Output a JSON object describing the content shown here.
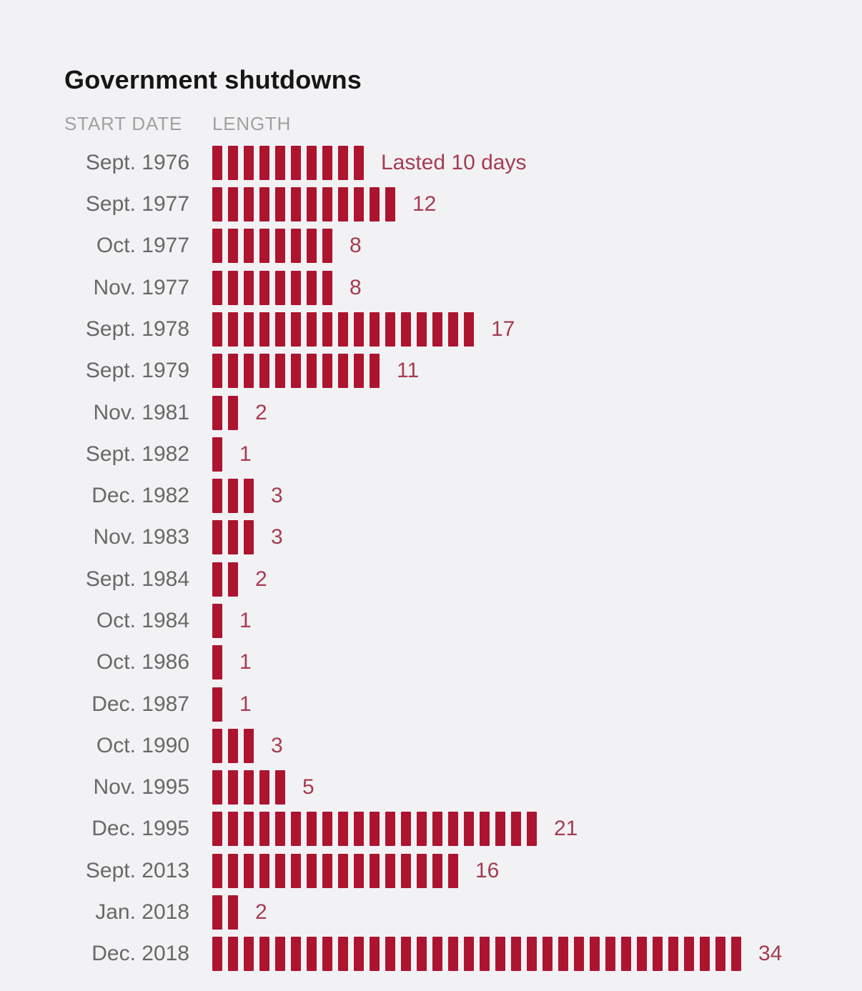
{
  "page": {
    "background_color": "#f2f2f4"
  },
  "chart_data": {
    "type": "bar",
    "orientation": "horizontal",
    "title": "Government shutdowns",
    "columns": [
      "START DATE",
      "LENGTH"
    ],
    "unit": "days",
    "bar_color": "#ad1430",
    "value_label_color": "#a63b52",
    "date_label_color": "#686868",
    "header_color": "#a1a1a1",
    "categories": [
      "Sept. 1976",
      "Sept. 1977",
      "Oct. 1977",
      "Nov. 1977",
      "Sept. 1978",
      "Sept. 1979",
      "Nov. 1981",
      "Sept. 1982",
      "Dec. 1982",
      "Nov. 1983",
      "Sept. 1984",
      "Oct. 1984",
      "Oct. 1986",
      "Dec. 1987",
      "Oct. 1990",
      "Nov. 1995",
      "Dec. 1995",
      "Sept. 2013",
      "Jan. 2018",
      "Dec. 2018"
    ],
    "values": [
      10,
      12,
      8,
      8,
      17,
      11,
      2,
      1,
      3,
      3,
      2,
      1,
      1,
      1,
      3,
      5,
      21,
      16,
      2,
      34
    ],
    "rows": [
      {
        "date": "Sept. 1976",
        "days": 10,
        "label": "Lasted 10 days"
      },
      {
        "date": "Sept. 1977",
        "days": 12,
        "label": "12"
      },
      {
        "date": "Oct. 1977",
        "days": 8,
        "label": "8"
      },
      {
        "date": "Nov. 1977",
        "days": 8,
        "label": "8"
      },
      {
        "date": "Sept. 1978",
        "days": 17,
        "label": "17"
      },
      {
        "date": "Sept. 1979",
        "days": 11,
        "label": "11"
      },
      {
        "date": "Nov. 1981",
        "days": 2,
        "label": "2"
      },
      {
        "date": "Sept. 1982",
        "days": 1,
        "label": "1"
      },
      {
        "date": "Dec. 1982",
        "days": 3,
        "label": "3"
      },
      {
        "date": "Nov. 1983",
        "days": 3,
        "label": "3"
      },
      {
        "date": "Sept. 1984",
        "days": 2,
        "label": "2"
      },
      {
        "date": "Oct. 1984",
        "days": 1,
        "label": "1"
      },
      {
        "date": "Oct. 1986",
        "days": 1,
        "label": "1"
      },
      {
        "date": "Dec. 1987",
        "days": 1,
        "label": "1"
      },
      {
        "date": "Oct. 1990",
        "days": 3,
        "label": "3"
      },
      {
        "date": "Nov. 1995",
        "days": 5,
        "label": "5"
      },
      {
        "date": "Dec. 1995",
        "days": 21,
        "label": "21"
      },
      {
        "date": "Sept. 2013",
        "days": 16,
        "label": "16"
      },
      {
        "date": "Jan. 2018",
        "days": 2,
        "label": "2"
      },
      {
        "date": "Dec. 2018",
        "days": 34,
        "label": "34"
      }
    ]
  }
}
